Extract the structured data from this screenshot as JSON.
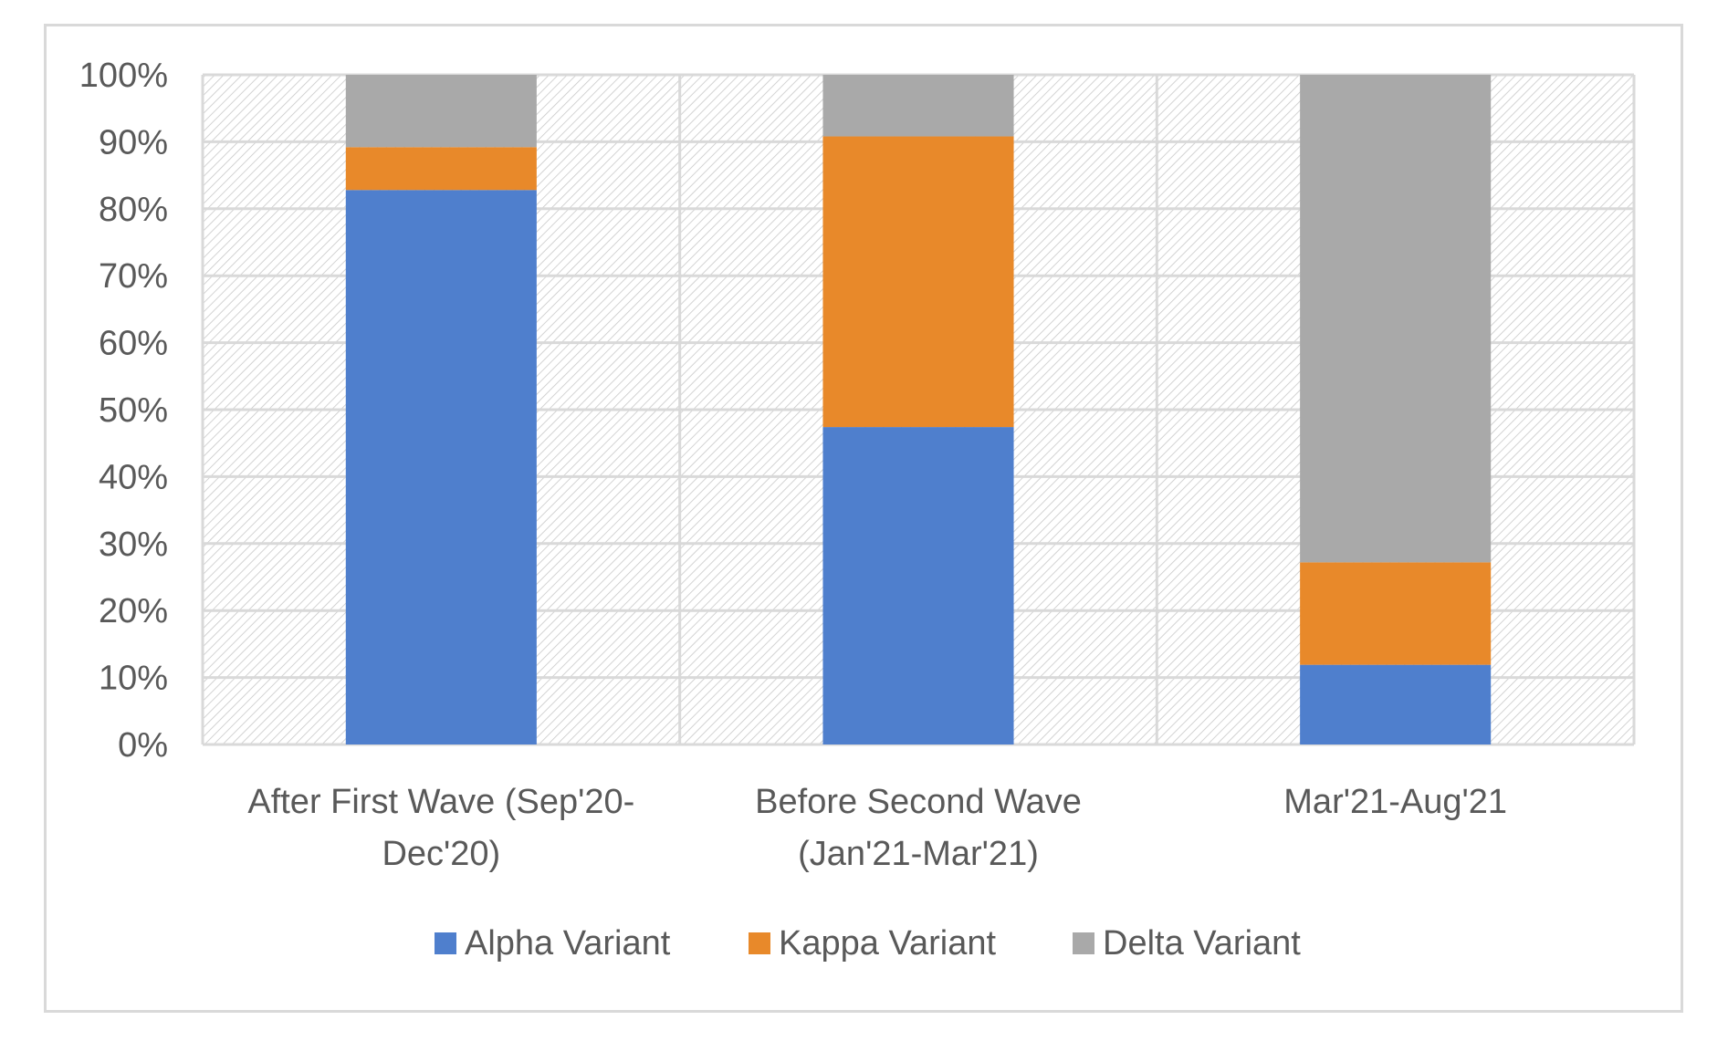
{
  "chart_data": {
    "type": "bar",
    "stacked": true,
    "categories": [
      [
        "After First Wave (Sep'20-",
        "Dec'20)"
      ],
      [
        "Before Second Wave",
        "(Jan'21-Mar'21)"
      ],
      [
        "Mar'21-Aug'21"
      ]
    ],
    "series": [
      {
        "name": "Alpha Variant",
        "color": "#4f7fcd",
        "values": [
          82.8,
          47.4,
          11.9
        ]
      },
      {
        "name": "Kappa Variant",
        "color": "#e8892a",
        "values": [
          6.4,
          43.4,
          15.3
        ]
      },
      {
        "name": "Delta Variant",
        "color": "#a9a9a9",
        "values": [
          10.8,
          9.2,
          72.8
        ]
      }
    ],
    "y_ticks": [
      "0%",
      "10%",
      "20%",
      "30%",
      "40%",
      "50%",
      "60%",
      "70%",
      "80%",
      "90%",
      "100%"
    ],
    "ylim": [
      0,
      100
    ],
    "grid": true,
    "plot_background": "hatched",
    "legend_position": "bottom"
  }
}
